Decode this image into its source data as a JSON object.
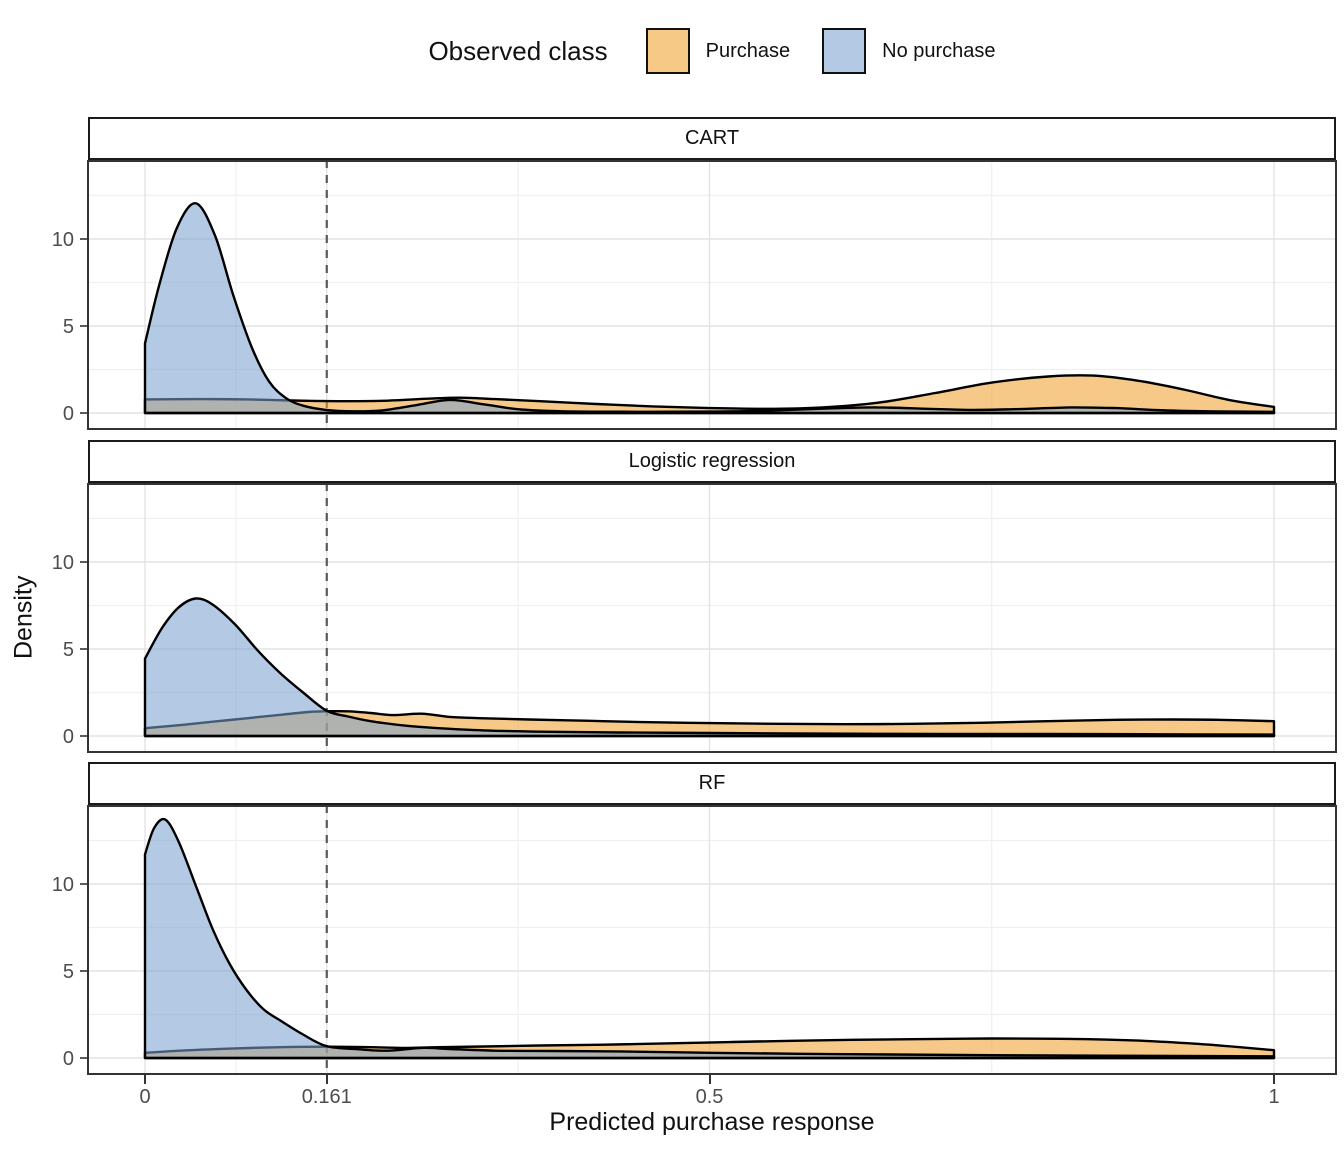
{
  "legend": {
    "title": "Observed class",
    "items": [
      {
        "label": "Purchase",
        "fill": "#F6C987"
      },
      {
        "label": "No purchase",
        "fill": "#B4C9E3"
      }
    ]
  },
  "axes": {
    "x_title": "Predicted purchase response",
    "y_title": "Density"
  },
  "chart_data": {
    "type": "area",
    "subtype": "overlaid density curves, faceted by model",
    "title": "",
    "legend_title": "Observed class",
    "legend_position": "top-center",
    "xlabel": "Predicted purchase response",
    "ylabel": "Density",
    "xlim": [
      -0.05,
      1.055
    ],
    "ylim": [
      -0.9,
      14.65
    ],
    "x_ticks": [
      0,
      0.161,
      0.5,
      1
    ],
    "x_tick_labels": [
      "0",
      "0.161",
      "0.5",
      "1"
    ],
    "x_minor_gridlines": [
      0.0805,
      0.3305,
      0.75
    ],
    "y_ticks": [
      0,
      5,
      10
    ],
    "y_tick_labels": [
      "0",
      "5",
      "10"
    ],
    "y_minor_gridlines": [
      2.5,
      7.5,
      12.5
    ],
    "grid": true,
    "threshold_vline": {
      "x": 0.161,
      "style": "dashed",
      "color": "#595959"
    },
    "series_style": {
      "Purchase": {
        "fill": "rgba(240,160,45,0.57)",
        "composited_fill": "#F6C987",
        "stroke": "#000000"
      },
      "No purchase": {
        "fill": "rgba(123,160,206,0.57)",
        "composited_fill": "#B4C9E3",
        "stroke": "#000000"
      }
    },
    "facets": [
      {
        "label": "CART",
        "series": [
          {
            "name": "Purchase",
            "points": [
              [
                0,
                0.78
              ],
              [
                0.05,
                0.8
              ],
              [
                0.09,
                0.78
              ],
              [
                0.13,
                0.72
              ],
              [
                0.17,
                0.68
              ],
              [
                0.21,
                0.7
              ],
              [
                0.25,
                0.82
              ],
              [
                0.28,
                0.88
              ],
              [
                0.31,
                0.8
              ],
              [
                0.35,
                0.68
              ],
              [
                0.4,
                0.52
              ],
              [
                0.45,
                0.38
              ],
              [
                0.5,
                0.28
              ],
              [
                0.55,
                0.24
              ],
              [
                0.6,
                0.32
              ],
              [
                0.65,
                0.6
              ],
              [
                0.7,
                1.15
              ],
              [
                0.75,
                1.75
              ],
              [
                0.8,
                2.1
              ],
              [
                0.84,
                2.15
              ],
              [
                0.88,
                1.85
              ],
              [
                0.92,
                1.35
              ],
              [
                0.96,
                0.75
              ],
              [
                1,
                0.35
              ]
            ]
          },
          {
            "name": "No purchase",
            "points": [
              [
                0,
                4.0
              ],
              [
                0.012,
                7.2
              ],
              [
                0.028,
                10.6
              ],
              [
                0.045,
                12.05
              ],
              [
                0.062,
                10.2
              ],
              [
                0.078,
                6.8
              ],
              [
                0.095,
                3.7
              ],
              [
                0.11,
                1.8
              ],
              [
                0.125,
                0.85
              ],
              [
                0.14,
                0.42
              ],
              [
                0.16,
                0.18
              ],
              [
                0.185,
                0.1
              ],
              [
                0.21,
                0.15
              ],
              [
                0.24,
                0.45
              ],
              [
                0.27,
                0.75
              ],
              [
                0.3,
                0.5
              ],
              [
                0.33,
                0.22
              ],
              [
                0.37,
                0.1
              ],
              [
                0.44,
                0.07
              ],
              [
                0.5,
                0.08
              ],
              [
                0.55,
                0.13
              ],
              [
                0.6,
                0.25
              ],
              [
                0.645,
                0.32
              ],
              [
                0.69,
                0.25
              ],
              [
                0.73,
                0.18
              ],
              [
                0.77,
                0.22
              ],
              [
                0.82,
                0.32
              ],
              [
                0.86,
                0.28
              ],
              [
                0.9,
                0.16
              ],
              [
                0.95,
                0.09
              ],
              [
                1,
                0.07
              ]
            ]
          }
        ]
      },
      {
        "label": "Logistic regression",
        "series": [
          {
            "name": "Purchase",
            "points": [
              [
                0,
                0.45
              ],
              [
                0.03,
                0.62
              ],
              [
                0.06,
                0.82
              ],
              [
                0.09,
                1.02
              ],
              [
                0.12,
                1.22
              ],
              [
                0.145,
                1.38
              ],
              [
                0.161,
                1.42
              ],
              [
                0.18,
                1.42
              ],
              [
                0.2,
                1.32
              ],
              [
                0.22,
                1.2
              ],
              [
                0.245,
                1.28
              ],
              [
                0.27,
                1.1
              ],
              [
                0.3,
                1.02
              ],
              [
                0.34,
                0.95
              ],
              [
                0.39,
                0.88
              ],
              [
                0.44,
                0.8
              ],
              [
                0.5,
                0.74
              ],
              [
                0.56,
                0.7
              ],
              [
                0.62,
                0.68
              ],
              [
                0.68,
                0.7
              ],
              [
                0.74,
                0.76
              ],
              [
                0.8,
                0.85
              ],
              [
                0.86,
                0.93
              ],
              [
                0.91,
                0.95
              ],
              [
                0.95,
                0.93
              ],
              [
                1,
                0.85
              ]
            ]
          },
          {
            "name": "No purchase",
            "points": [
              [
                0,
                4.45
              ],
              [
                0.015,
                6.2
              ],
              [
                0.03,
                7.4
              ],
              [
                0.045,
                7.9
              ],
              [
                0.06,
                7.55
              ],
              [
                0.08,
                6.4
              ],
              [
                0.1,
                4.9
              ],
              [
                0.12,
                3.6
              ],
              [
                0.14,
                2.5
              ],
              [
                0.161,
                1.45
              ],
              [
                0.18,
                1.12
              ],
              [
                0.2,
                0.85
              ],
              [
                0.23,
                0.6
              ],
              [
                0.26,
                0.45
              ],
              [
                0.3,
                0.32
              ],
              [
                0.35,
                0.25
              ],
              [
                0.42,
                0.2
              ],
              [
                0.5,
                0.17
              ],
              [
                0.6,
                0.14
              ],
              [
                0.7,
                0.12
              ],
              [
                0.8,
                0.12
              ],
              [
                0.9,
                0.1
              ],
              [
                1,
                0.08
              ]
            ]
          }
        ]
      },
      {
        "label": "RF",
        "series": [
          {
            "name": "Purchase",
            "points": [
              [
                0,
                0.3
              ],
              [
                0.04,
                0.45
              ],
              [
                0.08,
                0.55
              ],
              [
                0.12,
                0.62
              ],
              [
                0.161,
                0.65
              ],
              [
                0.2,
                0.62
              ],
              [
                0.23,
                0.58
              ],
              [
                0.26,
                0.62
              ],
              [
                0.3,
                0.66
              ],
              [
                0.35,
                0.72
              ],
              [
                0.4,
                0.76
              ],
              [
                0.45,
                0.82
              ],
              [
                0.52,
                0.92
              ],
              [
                0.6,
                1.02
              ],
              [
                0.68,
                1.08
              ],
              [
                0.75,
                1.12
              ],
              [
                0.82,
                1.1
              ],
              [
                0.88,
                1.0
              ],
              [
                0.93,
                0.82
              ],
              [
                0.97,
                0.62
              ],
              [
                1,
                0.45
              ]
            ]
          },
          {
            "name": "No purchase",
            "points": [
              [
                0,
                11.7
              ],
              [
                0.008,
                13.2
              ],
              [
                0.018,
                13.7
              ],
              [
                0.03,
                12.4
              ],
              [
                0.045,
                9.9
              ],
              [
                0.06,
                7.4
              ],
              [
                0.075,
                5.4
              ],
              [
                0.09,
                3.9
              ],
              [
                0.105,
                2.8
              ],
              [
                0.12,
                2.15
              ],
              [
                0.14,
                1.35
              ],
              [
                0.161,
                0.68
              ],
              [
                0.19,
                0.5
              ],
              [
                0.215,
                0.42
              ],
              [
                0.245,
                0.58
              ],
              [
                0.27,
                0.52
              ],
              [
                0.31,
                0.42
              ],
              [
                0.36,
                0.4
              ],
              [
                0.42,
                0.38
              ],
              [
                0.5,
                0.3
              ],
              [
                0.58,
                0.24
              ],
              [
                0.66,
                0.2
              ],
              [
                0.75,
                0.16
              ],
              [
                0.85,
                0.13
              ],
              [
                1,
                0.1
              ]
            ]
          }
        ]
      }
    ]
  }
}
